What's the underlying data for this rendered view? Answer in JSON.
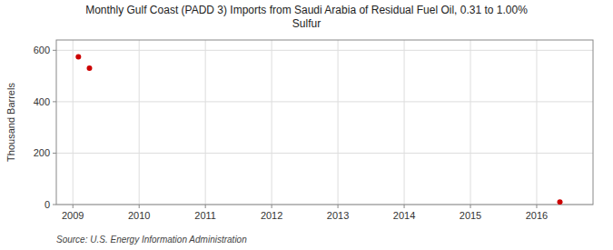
{
  "chart_data": {
    "type": "scatter",
    "title": "Monthly Gulf Coast (PADD 3) Imports from Saudi Arabia of Residual Fuel Oil, 0.31 to 1.00%\nSulfur",
    "ylabel": "Thousand Barrels",
    "source": "Source: U.S. Energy Information Administration",
    "x": [
      2009.0833,
      2009.25,
      2016.35
    ],
    "values": [
      575,
      530,
      10
    ],
    "color": "#cc0000",
    "xlim": [
      2008.75,
      2016.85
    ],
    "ylim": [
      0,
      640
    ],
    "xticks": [
      2009,
      2010,
      2011,
      2012,
      2013,
      2014,
      2015,
      2016
    ],
    "yticks": [
      0,
      200,
      400,
      600
    ],
    "grid": true
  }
}
